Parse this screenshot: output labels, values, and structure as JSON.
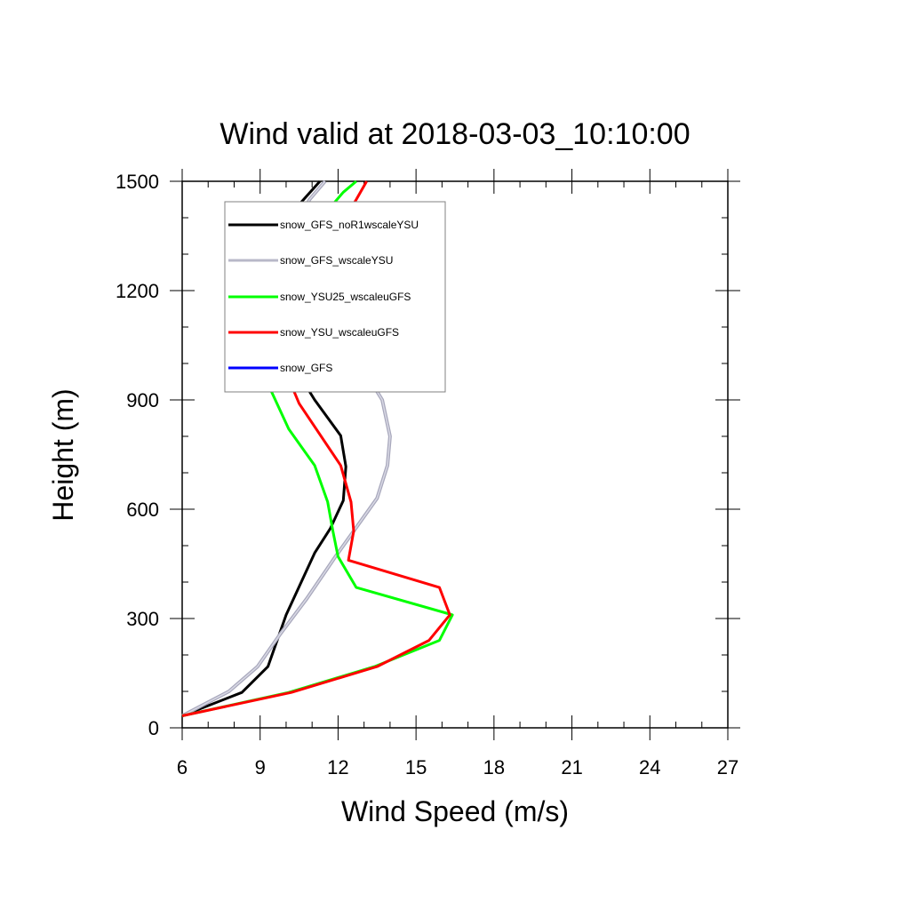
{
  "chart_data": {
    "type": "line",
    "title": "Wind valid at 2018-03-03_10:10:00",
    "xlabel": "Wind Speed (m/s)",
    "ylabel": "Height (m)",
    "xlim": [
      6,
      27
    ],
    "ylim": [
      0,
      1500
    ],
    "xticks": [
      6,
      9,
      12,
      15,
      18,
      21,
      24,
      27
    ],
    "yticks": [
      0,
      300,
      600,
      900,
      1200,
      1500
    ],
    "grid": false,
    "legend_position": "top-left",
    "series": [
      {
        "name": "snow_GFS_noR1wscaleYSU",
        "color": "#000000",
        "points": [
          [
            6.0,
            33
          ],
          [
            8.3,
            97
          ],
          [
            9.3,
            168
          ],
          [
            10.0,
            310
          ],
          [
            11.1,
            480
          ],
          [
            11.7,
            547
          ],
          [
            12.2,
            624
          ],
          [
            12.3,
            717
          ],
          [
            12.1,
            802
          ],
          [
            11.1,
            900
          ],
          [
            10.1,
            1015
          ],
          [
            9.0,
            1180
          ],
          [
            9.2,
            1300
          ],
          [
            10.3,
            1420
          ],
          [
            11.3,
            1500
          ]
        ]
      },
      {
        "name": "snow_GFS_wscaleYSU",
        "color": "#b8b8c8",
        "points": [
          [
            6.0,
            33
          ],
          [
            7.8,
            100
          ],
          [
            8.9,
            168
          ],
          [
            9.8,
            260
          ],
          [
            10.8,
            355
          ],
          [
            11.9,
            470
          ],
          [
            13.0,
            580
          ],
          [
            13.5,
            630
          ],
          [
            13.9,
            720
          ],
          [
            14.0,
            800
          ],
          [
            13.7,
            900
          ],
          [
            12.9,
            993
          ],
          [
            11.8,
            1085
          ],
          [
            10.9,
            1200
          ],
          [
            10.5,
            1280
          ],
          [
            10.4,
            1380
          ],
          [
            10.9,
            1450
          ],
          [
            11.5,
            1500
          ]
        ]
      },
      {
        "name": "snow_YSU25_wscaleuGFS",
        "color": "#00ff00",
        "points": [
          [
            6.0,
            33
          ],
          [
            10.1,
            97
          ],
          [
            13.4,
            168
          ],
          [
            15.9,
            240
          ],
          [
            16.4,
            310
          ],
          [
            12.7,
            385
          ],
          [
            12.0,
            470
          ],
          [
            11.8,
            540
          ],
          [
            11.6,
            620
          ],
          [
            11.1,
            720
          ],
          [
            10.1,
            820
          ],
          [
            9.1,
            975
          ],
          [
            8.9,
            1080
          ],
          [
            9.1,
            1180
          ],
          [
            9.8,
            1260
          ],
          [
            11.0,
            1370
          ],
          [
            12.2,
            1470
          ],
          [
            12.7,
            1500
          ]
        ]
      },
      {
        "name": "snow_YSU_wscaleuGFS",
        "color": "#ff0000",
        "points": [
          [
            6.0,
            33
          ],
          [
            10.2,
            97
          ],
          [
            13.5,
            168
          ],
          [
            15.5,
            240
          ],
          [
            16.3,
            310
          ],
          [
            15.9,
            385
          ],
          [
            12.4,
            460
          ],
          [
            12.6,
            540
          ],
          [
            12.5,
            620
          ],
          [
            12.1,
            720
          ],
          [
            10.5,
            890
          ],
          [
            10.0,
            975
          ],
          [
            9.9,
            1080
          ],
          [
            10.1,
            1150
          ],
          [
            10.9,
            1240
          ],
          [
            12.1,
            1380
          ],
          [
            12.7,
            1450
          ],
          [
            13.1,
            1500
          ]
        ]
      },
      {
        "name": "snow_GFS",
        "color": "#0000ff",
        "points": []
      }
    ]
  }
}
